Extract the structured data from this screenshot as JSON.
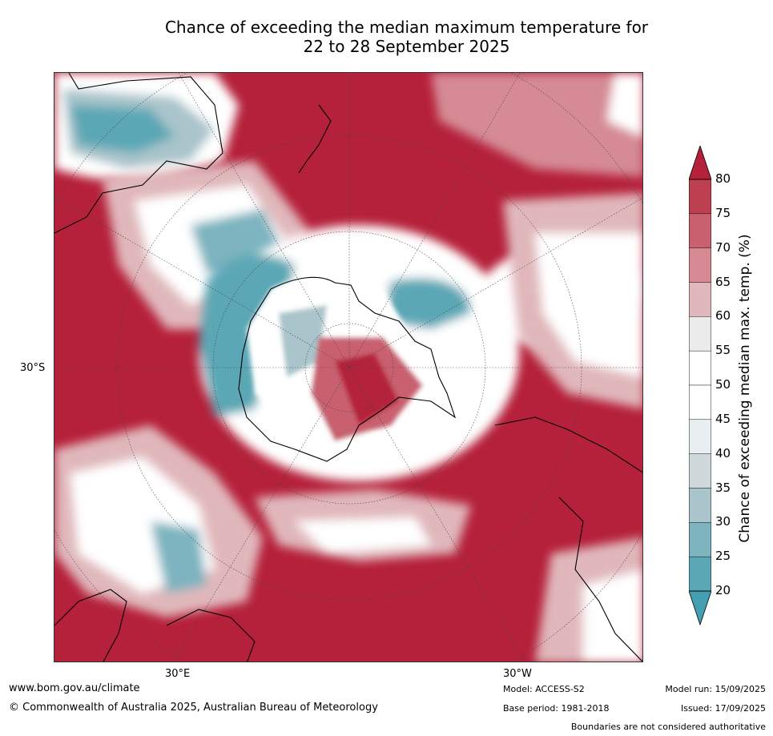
{
  "title_line1": "Chance of exceeding the median maximum temperature for",
  "title_line2": "22 to 28 September 2025",
  "graticule": {
    "lat_label": "30°S",
    "lon_label_left": "30°E",
    "lon_label_right": "30°W"
  },
  "colorbar": {
    "title": "Chance of exceeding median max. temp. (%)",
    "ticks": [
      "80",
      "75",
      "70",
      "65",
      "60",
      "55",
      "50",
      "45",
      "40",
      "35",
      "30",
      "25",
      "20"
    ],
    "colors": [
      "#b5203a",
      "#bd4050",
      "#c96070",
      "#d58a94",
      "#e0b7bb",
      "#ebebeb",
      "#ffffff",
      "#ffffff",
      "#e9eef0",
      "#cfd8db",
      "#a9c4ca",
      "#7db4c0",
      "#5ca7b5",
      "#449fb2"
    ]
  },
  "map": {
    "colors": {
      "warm": "#b5203a",
      "warm_mid": "#d58a94",
      "neutral": "#ffffff",
      "cool": "#449fb2",
      "cool_light": "#a9c4ca",
      "coast": "#000000"
    }
  },
  "footer": {
    "url": "www.bom.gov.au/climate",
    "copyright": "© Commonwealth of Australia 2025, Australian Bureau of Meteorology",
    "model": "Model: ACCESS-S2",
    "base_period": "Base period: 1981-2018",
    "model_run": "Model run: 15/09/2025",
    "issued": "Issued: 17/09/2025",
    "disclaimer": "Boundaries are not considered authoritative"
  }
}
